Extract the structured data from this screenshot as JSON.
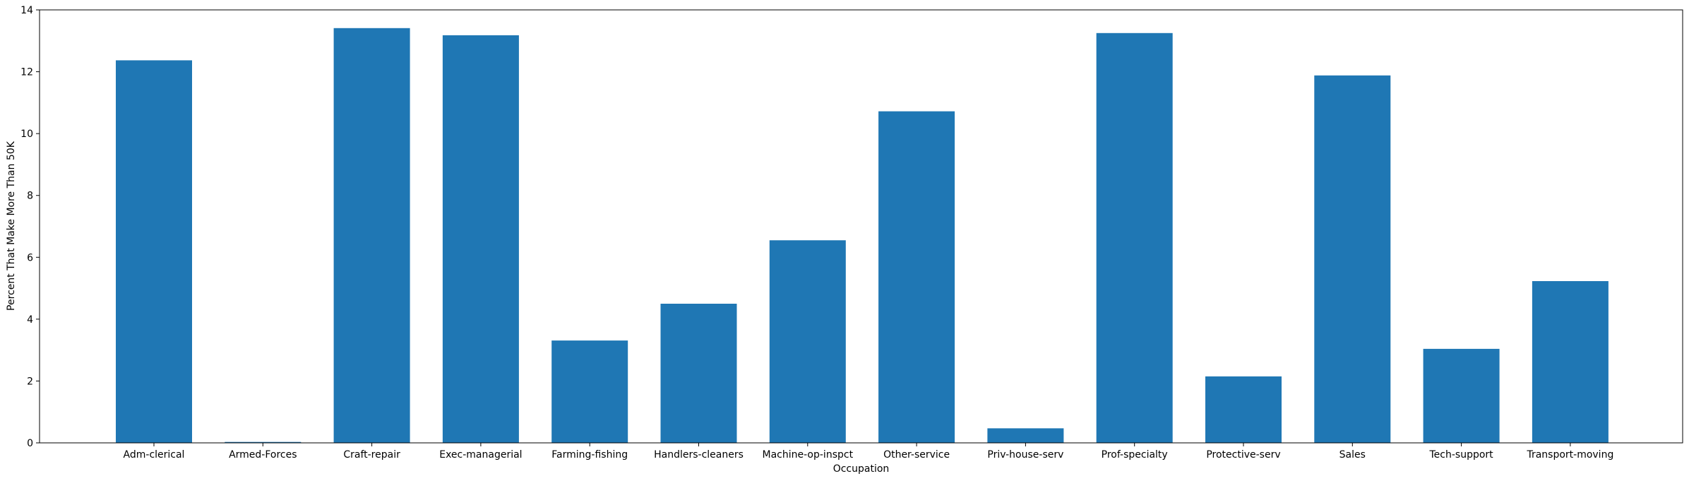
{
  "chart_data": {
    "type": "bar",
    "title": "",
    "xlabel": "Occupation",
    "ylabel": "Percent That Make More Than 50K",
    "ylim": [
      0,
      14
    ],
    "yticks": [
      0,
      2,
      4,
      6,
      8,
      10,
      12,
      14
    ],
    "grid": false,
    "bar_color": "#1f77b4",
    "categories": [
      "Adm-clerical",
      "Armed-Forces",
      "Craft-repair",
      "Exec-managerial",
      "Farming-fishing",
      "Handlers-cleaners",
      "Machine-op-inspct",
      "Other-service",
      "Priv-house-serv",
      "Prof-specialty",
      "Protective-serv",
      "Sales",
      "Tech-support",
      "Transport-moving"
    ],
    "values": [
      12.37,
      0.03,
      13.41,
      13.18,
      3.31,
      4.5,
      6.55,
      10.72,
      0.47,
      13.25,
      2.15,
      11.88,
      3.04,
      5.23
    ]
  }
}
